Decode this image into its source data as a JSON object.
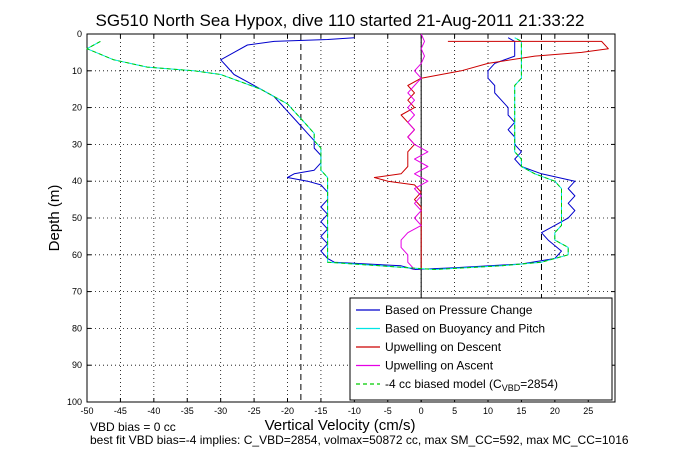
{
  "chart_data": {
    "type": "line",
    "title": "SG510 North Sea Hypox, dive 110 started 21-Aug-2011 21:33:22",
    "xlabel": "Vertical Velocity (cm/s)",
    "ylabel": "Depth (m)",
    "xlim": [
      -50,
      29
    ],
    "ylim": [
      0,
      100
    ],
    "y_reversed": true,
    "x_ticks": [
      -50,
      -45,
      -40,
      -35,
      -30,
      -25,
      -20,
      -15,
      -10,
      -5,
      0,
      5,
      10,
      15,
      20,
      25
    ],
    "y_ticks": [
      0,
      10,
      20,
      30,
      40,
      50,
      60,
      70,
      80,
      90,
      100
    ],
    "grid": "dotted",
    "legend_position": "lower-right",
    "reference_lines": {
      "dashed_black_x": [
        -18,
        18
      ],
      "solid_black_x": [
        0
      ]
    },
    "series": [
      {
        "name": "Based on Pressure Change",
        "color": "#0000cc",
        "style": "solid",
        "points": [
          [
            -10,
            1
          ],
          [
            -14,
            1.5
          ],
          [
            -22,
            2
          ],
          [
            -26,
            3
          ],
          [
            -28,
            5
          ],
          [
            -30,
            7
          ],
          [
            -29,
            9
          ],
          [
            -28,
            11
          ],
          [
            -26,
            13
          ],
          [
            -24,
            15
          ],
          [
            -22,
            17
          ],
          [
            -21,
            19
          ],
          [
            -20,
            21
          ],
          [
            -19,
            23
          ],
          [
            -18,
            25
          ],
          [
            -17,
            27
          ],
          [
            -16,
            29
          ],
          [
            -16,
            31
          ],
          [
            -15,
            33
          ],
          [
            -15,
            35
          ],
          [
            -16,
            37
          ],
          [
            -19,
            38
          ],
          [
            -20,
            39
          ],
          [
            -17,
            40
          ],
          [
            -15,
            41
          ],
          [
            -14,
            43
          ],
          [
            -14,
            45
          ],
          [
            -15,
            47
          ],
          [
            -14,
            49
          ],
          [
            -15,
            51
          ],
          [
            -14,
            53
          ],
          [
            -15,
            55
          ],
          [
            -14,
            57
          ],
          [
            -15,
            59
          ],
          [
            -14,
            61
          ],
          [
            -13,
            62
          ],
          [
            -3,
            63
          ],
          [
            -1,
            64
          ],
          [
            5,
            63.5
          ],
          [
            15,
            62.5
          ],
          [
            20,
            61
          ],
          [
            21,
            59
          ],
          [
            19,
            56
          ],
          [
            18,
            54
          ],
          [
            20,
            52
          ],
          [
            22,
            50
          ],
          [
            23,
            48
          ],
          [
            22,
            46
          ],
          [
            23,
            44
          ],
          [
            22,
            42
          ],
          [
            23,
            40
          ],
          [
            18,
            38
          ],
          [
            15,
            36
          ],
          [
            14,
            34
          ],
          [
            15,
            32
          ],
          [
            14,
            30
          ],
          [
            14,
            28
          ],
          [
            13,
            26
          ],
          [
            14,
            24
          ],
          [
            13,
            22
          ],
          [
            13,
            20
          ],
          [
            12,
            18
          ],
          [
            11,
            16
          ],
          [
            11,
            14
          ],
          [
            10,
            12
          ],
          [
            10,
            10
          ],
          [
            11,
            8
          ],
          [
            14,
            6
          ],
          [
            14,
            4
          ],
          [
            14,
            2
          ],
          [
            13,
            1
          ]
        ]
      },
      {
        "name": "Based on Buoyancy and Pitch",
        "color": "#00e5e5",
        "style": "solid",
        "points": [
          [
            -48,
            2
          ],
          [
            -50,
            4
          ],
          [
            -46,
            7
          ],
          [
            -41,
            9
          ],
          [
            -34,
            10
          ],
          [
            -30,
            11
          ],
          [
            -27,
            13
          ],
          [
            -24,
            15
          ],
          [
            -22,
            17
          ],
          [
            -20,
            19
          ],
          [
            -19,
            21
          ],
          [
            -18,
            23
          ],
          [
            -17,
            25
          ],
          [
            -16,
            27
          ],
          [
            -16,
            29
          ],
          [
            -15,
            31
          ],
          [
            -15,
            33
          ],
          [
            -15,
            35
          ],
          [
            -15,
            37
          ],
          [
            -14,
            39
          ],
          [
            -14,
            41
          ],
          [
            -14,
            43
          ],
          [
            -14,
            45
          ],
          [
            -14,
            47
          ],
          [
            -14,
            49
          ],
          [
            -14,
            51
          ],
          [
            -14,
            53
          ],
          [
            -14,
            55
          ],
          [
            -14,
            57
          ],
          [
            -14,
            59
          ],
          [
            -14,
            61
          ],
          [
            -14,
            62
          ],
          [
            -2,
            63.5
          ],
          [
            2,
            64
          ],
          [
            12,
            63
          ],
          [
            18,
            62
          ],
          [
            22,
            60
          ],
          [
            22,
            58
          ],
          [
            20,
            56
          ],
          [
            20,
            54
          ],
          [
            21,
            52
          ],
          [
            21,
            50
          ],
          [
            21,
            48
          ],
          [
            21,
            46
          ],
          [
            21,
            44
          ],
          [
            21,
            42
          ],
          [
            20,
            40
          ],
          [
            17,
            38
          ],
          [
            15,
            36
          ],
          [
            15,
            34
          ],
          [
            14,
            32
          ],
          [
            14,
            30
          ],
          [
            14,
            28
          ],
          [
            14,
            26
          ],
          [
            14,
            24
          ],
          [
            14,
            22
          ],
          [
            14,
            20
          ],
          [
            14,
            18
          ],
          [
            14,
            16
          ],
          [
            14,
            14
          ],
          [
            15,
            12
          ],
          [
            15,
            10
          ],
          [
            15,
            8
          ],
          [
            15,
            6
          ],
          [
            15,
            4
          ],
          [
            15,
            2
          ],
          [
            14,
            1
          ]
        ]
      },
      {
        "name": "Upwelling on Descent",
        "color": "#cc0000",
        "style": "solid",
        "points": [
          [
            4,
            2
          ],
          [
            14,
            2
          ],
          [
            27,
            2
          ],
          [
            28,
            4
          ],
          [
            24,
            5
          ],
          [
            17,
            6
          ],
          [
            10,
            8
          ],
          [
            6,
            10
          ],
          [
            0,
            12
          ],
          [
            -2,
            14
          ],
          [
            -1,
            16
          ],
          [
            -2,
            18
          ],
          [
            -1,
            20
          ],
          [
            -3,
            22
          ],
          [
            -2,
            24
          ],
          [
            -1,
            26
          ],
          [
            -2,
            28
          ],
          [
            -1,
            30
          ],
          [
            -2,
            32
          ],
          [
            -2,
            34
          ],
          [
            -2,
            36
          ],
          [
            -3,
            38
          ],
          [
            -7,
            39
          ],
          [
            -5,
            40
          ],
          [
            -1,
            41
          ],
          [
            0,
            43
          ],
          [
            -1,
            45
          ],
          [
            0,
            47
          ],
          [
            0,
            49
          ],
          [
            0,
            51
          ],
          [
            0,
            53
          ],
          [
            0,
            55
          ],
          [
            0,
            57
          ],
          [
            0,
            59
          ],
          [
            0,
            61
          ],
          [
            0,
            63
          ],
          [
            0,
            64
          ]
        ]
      },
      {
        "name": "Upwelling on Ascent",
        "color": "#e500e5",
        "style": "solid",
        "points": [
          [
            0,
            0
          ],
          [
            0.5,
            2
          ],
          [
            0,
            4
          ],
          [
            0.5,
            6
          ],
          [
            0,
            8
          ],
          [
            -1,
            10
          ],
          [
            0,
            12
          ],
          [
            -1,
            14
          ],
          [
            -2,
            16
          ],
          [
            -1,
            18
          ],
          [
            -2,
            20
          ],
          [
            -1,
            22
          ],
          [
            -2,
            24
          ],
          [
            -1,
            26
          ],
          [
            -2,
            28
          ],
          [
            -1,
            30
          ],
          [
            1,
            32
          ],
          [
            -1,
            34
          ],
          [
            1,
            36
          ],
          [
            -1,
            38
          ],
          [
            1,
            40
          ],
          [
            -1,
            42
          ],
          [
            0,
            44
          ],
          [
            -1,
            46
          ],
          [
            0,
            48
          ],
          [
            -1,
            50
          ],
          [
            0,
            52
          ],
          [
            -2,
            54
          ],
          [
            -3,
            56
          ],
          [
            -3,
            58
          ],
          [
            -2,
            60
          ],
          [
            -2,
            62
          ],
          [
            -1,
            64
          ]
        ]
      },
      {
        "name": "-4 cc biased model (C_VBD=2854)",
        "color": "#00cc00",
        "style": "dashed",
        "points": [
          [
            -48,
            2
          ],
          [
            -50,
            4
          ],
          [
            -46,
            7
          ],
          [
            -41,
            9
          ],
          [
            -34,
            10
          ],
          [
            -30,
            11
          ],
          [
            -27,
            13
          ],
          [
            -24,
            15
          ],
          [
            -22,
            17
          ],
          [
            -20,
            19
          ],
          [
            -19,
            21
          ],
          [
            -18,
            23
          ],
          [
            -17,
            25
          ],
          [
            -16,
            27
          ],
          [
            -16,
            29
          ],
          [
            -15,
            31
          ],
          [
            -15,
            33
          ],
          [
            -15,
            35
          ],
          [
            -15,
            37
          ],
          [
            -14,
            39
          ],
          [
            -14,
            41
          ],
          [
            -14,
            43
          ],
          [
            -14,
            45
          ],
          [
            -14,
            47
          ],
          [
            -14,
            49
          ],
          [
            -14,
            51
          ],
          [
            -14,
            53
          ],
          [
            -14,
            55
          ],
          [
            -14,
            57
          ],
          [
            -14,
            59
          ],
          [
            -14,
            61
          ],
          [
            -14,
            62
          ],
          [
            -2,
            63.5
          ],
          [
            2,
            64
          ],
          [
            12,
            63
          ],
          [
            18,
            62
          ],
          [
            22,
            60
          ],
          [
            22,
            58
          ],
          [
            20,
            56
          ],
          [
            20,
            54
          ],
          [
            21,
            52
          ],
          [
            21,
            50
          ],
          [
            21,
            48
          ],
          [
            21,
            46
          ],
          [
            21,
            44
          ],
          [
            21,
            42
          ],
          [
            20,
            40
          ],
          [
            17,
            38
          ],
          [
            15,
            36
          ],
          [
            15,
            34
          ],
          [
            14,
            32
          ],
          [
            14,
            30
          ],
          [
            14,
            28
          ],
          [
            14,
            26
          ],
          [
            14,
            24
          ],
          [
            14,
            22
          ],
          [
            14,
            20
          ],
          [
            14,
            18
          ],
          [
            14,
            16
          ],
          [
            14,
            14
          ],
          [
            15,
            12
          ],
          [
            15,
            10
          ],
          [
            15,
            8
          ],
          [
            15,
            6
          ],
          [
            15,
            4
          ],
          [
            15,
            2
          ],
          [
            14,
            1
          ]
        ]
      }
    ],
    "legend_labels": [
      {
        "text": "Based on Pressure Change"
      },
      {
        "text": "Based on Buoyancy and Pitch"
      },
      {
        "text": "Upwelling on Descent"
      },
      {
        "text": "Upwelling on Ascent"
      },
      {
        "text": "-4 cc biased model (C",
        "sub": "VBD",
        "tail": "=2854)"
      }
    ]
  },
  "footer": {
    "line1": "VBD bias = 0 cc",
    "line2": "best fit VBD bias=-4 implies: C_VBD=2854, volmax=50872 cc, max SM_CC=592, max MC_CC=1016"
  }
}
